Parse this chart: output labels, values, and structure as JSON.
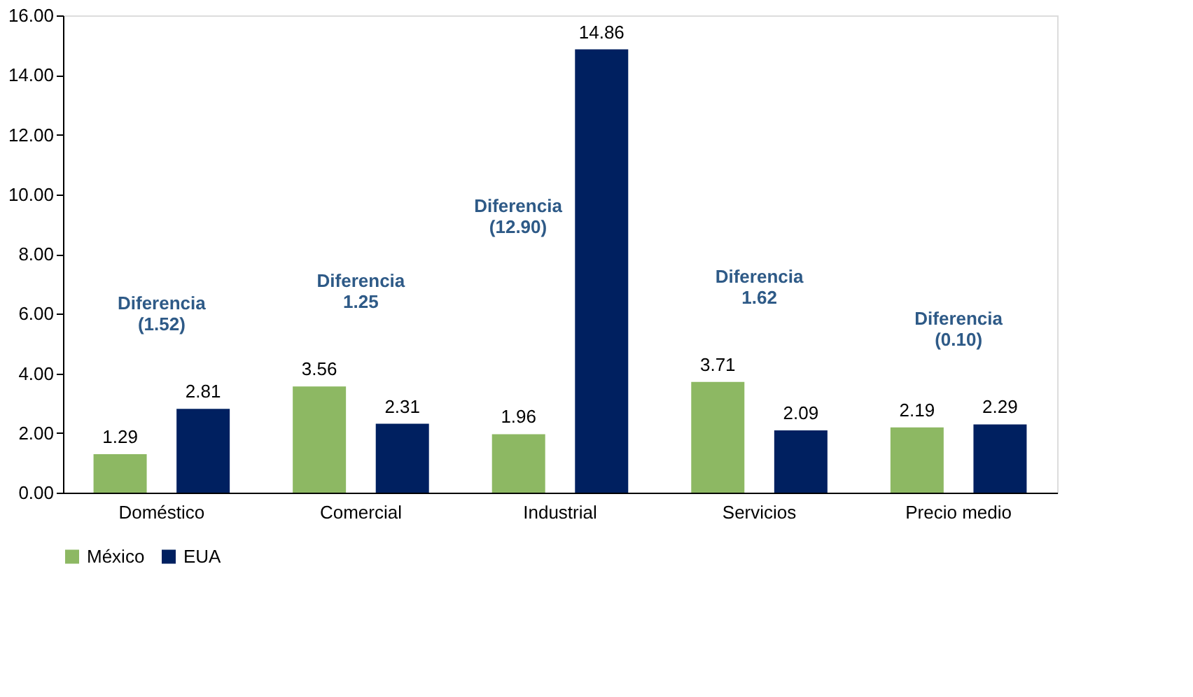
{
  "chart_data": {
    "type": "bar",
    "categories": [
      "Doméstico",
      "Comercial",
      "Industrial",
      "Servicios",
      "Precio medio"
    ],
    "series": [
      {
        "name": "México",
        "color": "#8db863",
        "values": [
          1.29,
          3.56,
          1.96,
          3.71,
          2.19
        ]
      },
      {
        "name": "EUA",
        "color": "#002060",
        "values": [
          2.81,
          2.31,
          14.86,
          2.09,
          2.29
        ]
      }
    ],
    "ylim": [
      0,
      16
    ],
    "yticks": [
      {
        "value": 0,
        "label": "0.00"
      },
      {
        "value": 2,
        "label": "2.00"
      },
      {
        "value": 4,
        "label": "4.00"
      },
      {
        "value": 6,
        "label": "6.00"
      },
      {
        "value": 8,
        "label": "8.00"
      },
      {
        "value": 10,
        "label": "10.00"
      },
      {
        "value": 12,
        "label": "12.00"
      },
      {
        "value": 14,
        "label": "14.00"
      },
      {
        "value": 16,
        "label": "16.00"
      }
    ],
    "data_labels": true,
    "grid": false,
    "legend": "bottom",
    "annotations": [
      "Diferencia\n(1.52)",
      "Diferencia\n1.25",
      "Diferencia\n(12.90)",
      "Diferencia\n1.62",
      "Diferencia\n(0.10)"
    ]
  }
}
